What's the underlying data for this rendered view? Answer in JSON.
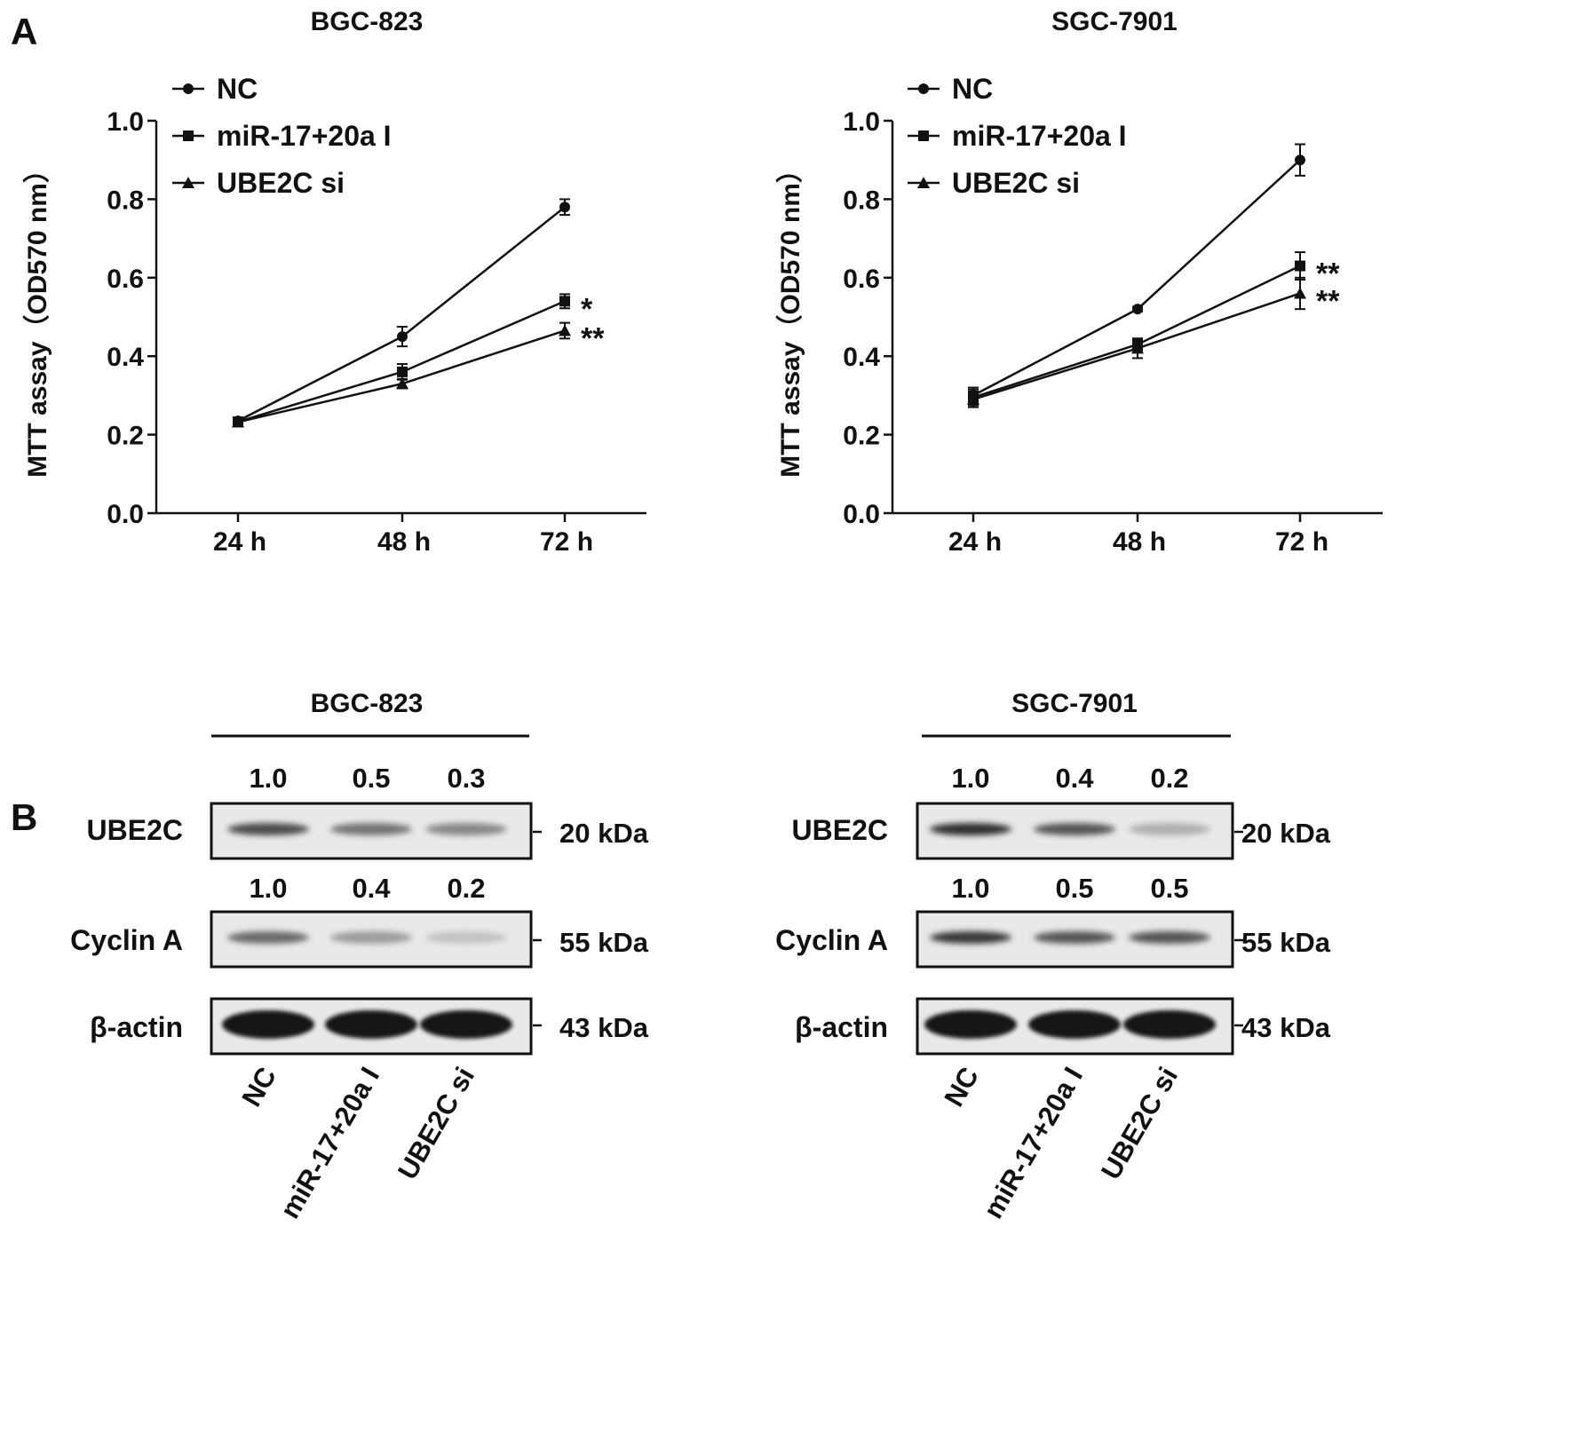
{
  "panels": {
    "a_label": "A",
    "b_label": "B"
  },
  "chart_data": [
    {
      "type": "line",
      "title": "BGC-823",
      "ylabel": "MTT assay（OD570 nm）",
      "xlabel": "",
      "categories": [
        "24 h",
        "48 h",
        "72 h"
      ],
      "ylim": [
        0,
        1.0
      ],
      "yticks": [
        "0.0",
        "0.2",
        "0.4",
        "0.6",
        "0.8",
        "1.0"
      ],
      "legend_position": "top-left",
      "series": [
        {
          "name": "NC",
          "marker": "circle",
          "values": [
            0.235,
            0.45,
            0.78
          ],
          "errors": [
            0.008,
            0.025,
            0.02
          ],
          "annotation": ""
        },
        {
          "name": "miR-17+20a I",
          "marker": "square",
          "values": [
            0.233,
            0.36,
            0.54
          ],
          "errors": [
            0.008,
            0.02,
            0.018
          ],
          "annotation": "*"
        },
        {
          "name": "UBE2C si",
          "marker": "triangle",
          "values": [
            0.232,
            0.33,
            0.465
          ],
          "errors": [
            0.008,
            0.012,
            0.02
          ],
          "annotation": "**"
        }
      ]
    },
    {
      "type": "line",
      "title": "SGC-7901",
      "ylabel": "MTT assay（OD570 nm）",
      "xlabel": "",
      "categories": [
        "24 h",
        "48 h",
        "72 h"
      ],
      "ylim": [
        0,
        1.0
      ],
      "yticks": [
        "0.0",
        "0.2",
        "0.4",
        "0.6",
        "0.8",
        "1.0"
      ],
      "legend_position": "top-left",
      "series": [
        {
          "name": "NC",
          "marker": "circle",
          "values": [
            0.3,
            0.52,
            0.9
          ],
          "errors": [
            0.02,
            0.006,
            0.04
          ],
          "annotation": ""
        },
        {
          "name": "miR-17+20a I",
          "marker": "square",
          "values": [
            0.295,
            0.43,
            0.63
          ],
          "errors": [
            0.02,
            0.015,
            0.035
          ],
          "annotation": "**"
        },
        {
          "name": "UBE2C si",
          "marker": "triangle",
          "values": [
            0.29,
            0.42,
            0.56
          ],
          "errors": [
            0.02,
            0.025,
            0.04
          ],
          "annotation": "**"
        }
      ]
    }
  ],
  "western": [
    {
      "cell_line": "BGC-823",
      "lanes": [
        "NC",
        "miR-17+20a I",
        "UBE2C si"
      ],
      "blots": [
        {
          "protein": "UBE2C",
          "kda": "20 kDa",
          "quant": [
            "1.0",
            "0.5",
            "0.3"
          ],
          "intensity": [
            0.8,
            0.6,
            0.5
          ]
        },
        {
          "protein": "Cyclin A",
          "kda": "55 kDa",
          "quant": [
            "1.0",
            "0.4",
            "0.2"
          ],
          "intensity": [
            0.65,
            0.4,
            0.2
          ]
        },
        {
          "protein": "β-actin",
          "kda": "43 kDa",
          "quant": [],
          "intensity": [
            1.0,
            1.0,
            1.0
          ]
        }
      ]
    },
    {
      "cell_line": "SGC-7901",
      "lanes": [
        "NC",
        "miR-17+20a I",
        "UBE2C si"
      ],
      "blots": [
        {
          "protein": "UBE2C",
          "kda": "20 kDa",
          "quant": [
            "1.0",
            "0.4",
            "0.2"
          ],
          "intensity": [
            0.95,
            0.75,
            0.3
          ]
        },
        {
          "protein": "Cyclin A",
          "kda": "55 kDa",
          "quant": [
            "1.0",
            "0.5",
            "0.5"
          ],
          "intensity": [
            0.9,
            0.75,
            0.75
          ]
        },
        {
          "protein": "β-actin",
          "kda": "43 kDa",
          "quant": [],
          "intensity": [
            1.0,
            1.0,
            1.0
          ]
        }
      ]
    }
  ]
}
